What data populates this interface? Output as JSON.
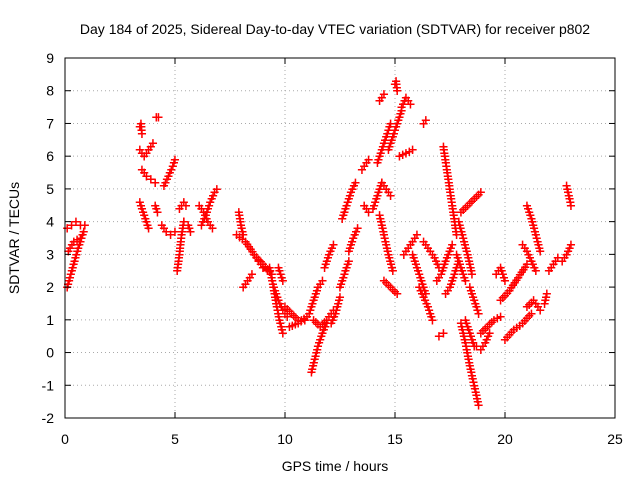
{
  "chart_data": {
    "type": "scatter",
    "title": "Day 184 of 2025, Sidereal Day-to-day VTEC variation (SDTVAR) for receiver p802",
    "xlabel": "GPS time / hours",
    "ylabel": "SDTVAR / TECUs",
    "xlim": [
      0,
      25
    ],
    "ylim": [
      -2,
      9
    ],
    "xticks": [
      0,
      5,
      10,
      15,
      20,
      25
    ],
    "yticks": [
      -2,
      -1,
      0,
      1,
      2,
      3,
      4,
      5,
      6,
      7,
      8,
      9
    ],
    "grid": true,
    "marker": "+",
    "color": "#ff0000",
    "segments": [
      {
        "x": [
          0.1,
          0.35,
          0.6,
          0.85
        ],
        "y": [
          2.0,
          2.6,
          3.2,
          3.7
        ]
      },
      {
        "x": [
          0.1,
          0.3,
          0.5,
          0.7,
          0.9
        ],
        "y": [
          3.8,
          3.9,
          4.0,
          3.9,
          3.9
        ]
      },
      {
        "x": [
          0.15,
          0.4,
          0.7
        ],
        "y": [
          3.1,
          3.4,
          3.5
        ]
      },
      {
        "x": [
          3.4,
          3.45,
          3.5
        ],
        "y": [
          6.9,
          7.0,
          6.7
        ]
      },
      {
        "x": [
          3.4,
          3.6,
          3.8,
          4.0
        ],
        "y": [
          6.2,
          6.0,
          6.2,
          6.4
        ]
      },
      {
        "x": [
          3.5,
          3.7,
          3.9,
          4.1
        ],
        "y": [
          5.6,
          5.4,
          5.3,
          5.2
        ]
      },
      {
        "x": [
          3.4,
          3.6,
          3.8
        ],
        "y": [
          4.6,
          4.2,
          3.8
        ]
      },
      {
        "x": [
          4.1,
          4.2
        ],
        "y": [
          4.5,
          4.3
        ]
      },
      {
        "x": [
          4.15,
          4.25
        ],
        "y": [
          7.2,
          7.2
        ]
      },
      {
        "x": [
          4.5,
          4.7,
          4.9,
          5.0
        ],
        "y": [
          5.1,
          5.4,
          5.7,
          5.9
        ]
      },
      {
        "x": [
          4.4,
          4.6,
          4.8,
          5.0
        ],
        "y": [
          3.9,
          3.7,
          3.6,
          3.7
        ]
      },
      {
        "x": [
          5.1,
          5.2,
          5.3,
          5.4
        ],
        "y": [
          2.5,
          3.0,
          3.6,
          4.0
        ]
      },
      {
        "x": [
          5.2,
          5.4,
          5.5
        ],
        "y": [
          4.4,
          4.6,
          4.5
        ]
      },
      {
        "x": [
          5.4,
          5.6,
          5.7
        ],
        "y": [
          4.0,
          3.9,
          3.7
        ]
      },
      {
        "x": [
          6.2,
          6.4,
          6.6,
          6.8,
          6.9
        ],
        "y": [
          3.9,
          4.2,
          4.6,
          4.9,
          5.0
        ]
      },
      {
        "x": [
          6.1,
          6.3,
          6.5,
          6.7
        ],
        "y": [
          4.5,
          4.3,
          4.0,
          3.8
        ]
      },
      {
        "x": [
          7.9,
          8.0,
          8.1
        ],
        "y": [
          4.3,
          3.9,
          3.6
        ]
      },
      {
        "x": [
          7.8,
          8.2,
          8.6,
          9.0,
          9.4
        ],
        "y": [
          3.6,
          3.4,
          3.0,
          2.7,
          2.4
        ]
      },
      {
        "x": [
          8.1,
          8.3,
          8.5
        ],
        "y": [
          2.0,
          2.2,
          2.4
        ]
      },
      {
        "x": [
          8.6,
          8.8,
          9.0,
          9.2
        ],
        "y": [
          3.0,
          2.8,
          2.6,
          2.5
        ]
      },
      {
        "x": [
          9.3,
          9.45,
          9.6,
          9.75,
          9.9
        ],
        "y": [
          2.6,
          2.1,
          1.5,
          1.0,
          0.6
        ]
      },
      {
        "x": [
          9.5,
          9.7,
          9.9,
          10.1
        ],
        "y": [
          2.0,
          1.6,
          1.3,
          1.1
        ]
      },
      {
        "x": [
          9.7,
          9.8,
          9.9
        ],
        "y": [
          2.6,
          2.4,
          2.2
        ]
      },
      {
        "x": [
          10.0,
          10.3,
          10.6,
          10.9
        ],
        "y": [
          1.4,
          1.2,
          1.0,
          1.0
        ]
      },
      {
        "x": [
          10.2,
          10.6,
          11.0
        ],
        "y": [
          0.8,
          0.9,
          1.1
        ]
      },
      {
        "x": [
          11.1,
          11.3,
          11.5,
          11.7
        ],
        "y": [
          1.2,
          1.6,
          2.0,
          2.2
        ]
      },
      {
        "x": [
          11.2,
          11.35,
          11.5,
          11.7,
          11.9
        ],
        "y": [
          -0.6,
          -0.2,
          0.2,
          0.6,
          0.9
        ]
      },
      {
        "x": [
          11.8,
          12.0,
          12.2
        ],
        "y": [
          2.6,
          3.0,
          3.3
        ]
      },
      {
        "x": [
          11.3,
          11.6,
          11.9,
          12.2
        ],
        "y": [
          1.0,
          0.8,
          1.0,
          1.3
        ]
      },
      {
        "x": [
          12.1,
          12.3,
          12.5
        ],
        "y": [
          0.9,
          1.2,
          1.7
        ]
      },
      {
        "x": [
          12.5,
          12.7,
          12.9
        ],
        "y": [
          2.0,
          2.4,
          2.8
        ]
      },
      {
        "x": [
          12.6,
          12.8,
          13.0,
          13.2
        ],
        "y": [
          4.1,
          4.5,
          4.9,
          5.2
        ]
      },
      {
        "x": [
          12.9,
          13.1,
          13.3
        ],
        "y": [
          3.1,
          3.5,
          3.8
        ]
      },
      {
        "x": [
          13.6,
          13.8
        ],
        "y": [
          4.5,
          4.3
        ]
      },
      {
        "x": [
          13.5,
          13.8
        ],
        "y": [
          5.6,
          5.9
        ]
      },
      {
        "x": [
          14.0,
          14.2,
          14.4
        ],
        "y": [
          4.4,
          4.8,
          5.2
        ]
      },
      {
        "x": [
          14.2,
          14.4,
          14.6,
          14.8
        ],
        "y": [
          5.8,
          6.2,
          6.6,
          7.0
        ]
      },
      {
        "x": [
          14.3,
          14.5,
          14.7,
          14.9
        ],
        "y": [
          4.2,
          3.6,
          3.0,
          2.5
        ]
      },
      {
        "x": [
          14.4,
          14.6,
          14.8
        ],
        "y": [
          5.2,
          5.0,
          4.8
        ]
      },
      {
        "x": [
          14.5,
          14.8,
          15.1
        ],
        "y": [
          2.2,
          2.0,
          1.8
        ]
      },
      {
        "x": [
          14.7,
          14.9,
          15.1,
          15.3
        ],
        "y": [
          6.2,
          6.6,
          7.0,
          7.4
        ]
      },
      {
        "x": [
          15.0,
          15.05,
          15.1
        ],
        "y": [
          8.2,
          8.3,
          8.0
        ]
      },
      {
        "x": [
          14.3,
          14.5
        ],
        "y": [
          7.7,
          7.9
        ]
      },
      {
        "x": [
          15.3,
          15.5,
          15.7
        ],
        "y": [
          7.5,
          7.8,
          7.6
        ]
      },
      {
        "x": [
          15.2,
          15.5,
          15.8
        ],
        "y": [
          6.0,
          6.1,
          6.2
        ]
      },
      {
        "x": [
          15.4,
          15.6,
          15.8,
          16.0
        ],
        "y": [
          3.0,
          3.2,
          3.4,
          3.6
        ]
      },
      {
        "x": [
          15.8,
          16.0,
          16.2,
          16.4
        ],
        "y": [
          3.0,
          2.6,
          2.2,
          1.8
        ]
      },
      {
        "x": [
          16.1,
          16.3,
          16.5,
          16.7
        ],
        "y": [
          2.0,
          1.7,
          1.4,
          1.0
        ]
      },
      {
        "x": [
          16.3,
          16.5,
          16.8,
          17.0
        ],
        "y": [
          3.4,
          3.2,
          2.9,
          2.6
        ]
      },
      {
        "x": [
          16.3,
          16.4
        ],
        "y": [
          7.0,
          7.1
        ]
      },
      {
        "x": [
          16.9,
          17.1,
          17.3,
          17.6
        ],
        "y": [
          2.2,
          2.4,
          2.8,
          3.3
        ]
      },
      {
        "x": [
          17.2,
          17.4,
          17.6,
          17.8
        ],
        "y": [
          6.3,
          5.4,
          4.5,
          3.6
        ]
      },
      {
        "x": [
          17.3,
          17.5,
          17.7,
          17.9
        ],
        "y": [
          1.8,
          2.0,
          2.4,
          2.8
        ]
      },
      {
        "x": [
          17.0,
          17.2
        ],
        "y": [
          0.5,
          0.6
        ]
      },
      {
        "x": [
          17.8,
          18.0,
          18.2
        ],
        "y": [
          3.0,
          2.6,
          2.2
        ]
      },
      {
        "x": [
          18.0,
          18.3,
          18.6,
          18.9
        ],
        "y": [
          4.3,
          4.5,
          4.7,
          4.9
        ]
      },
      {
        "x": [
          17.9,
          18.1,
          18.3,
          18.5
        ],
        "y": [
          4.0,
          3.5,
          3.0,
          2.4
        ]
      },
      {
        "x": [
          18.0,
          18.2,
          18.4,
          18.6,
          18.8
        ],
        "y": [
          0.9,
          0.3,
          -0.4,
          -1.0,
          -1.6
        ]
      },
      {
        "x": [
          18.2,
          18.4,
          18.6
        ],
        "y": [
          1.0,
          0.6,
          0.2
        ]
      },
      {
        "x": [
          18.4,
          18.6,
          18.8
        ],
        "y": [
          2.0,
          1.6,
          1.2
        ]
      },
      {
        "x": [
          18.7,
          18.9,
          19.1,
          19.3
        ],
        "y": [
          0.2,
          0.1,
          0.3,
          0.6
        ]
      },
      {
        "x": [
          18.9,
          19.2,
          19.5,
          19.8
        ],
        "y": [
          0.6,
          0.8,
          1.0,
          1.1
        ]
      },
      {
        "x": [
          19.6,
          19.8,
          20.0
        ],
        "y": [
          2.4,
          2.6,
          2.2
        ]
      },
      {
        "x": [
          19.8,
          20.2,
          20.6,
          21.0
        ],
        "y": [
          1.6,
          1.9,
          2.3,
          2.7
        ]
      },
      {
        "x": [
          20.0,
          20.4,
          20.8,
          21.2
        ],
        "y": [
          0.4,
          0.7,
          0.9,
          1.2
        ]
      },
      {
        "x": [
          20.8,
          21.0,
          21.2,
          21.4
        ],
        "y": [
          3.3,
          3.1,
          2.8,
          2.5
        ]
      },
      {
        "x": [
          21.0,
          21.2,
          21.4,
          21.6
        ],
        "y": [
          4.5,
          4.1,
          3.6,
          3.1
        ]
      },
      {
        "x": [
          21.0,
          21.3,
          21.6
        ],
        "y": [
          1.4,
          1.6,
          1.3
        ]
      },
      {
        "x": [
          21.8,
          21.9
        ],
        "y": [
          1.5,
          1.8
        ]
      },
      {
        "x": [
          22.0,
          22.2,
          22.4
        ],
        "y": [
          2.5,
          2.7,
          2.9
        ]
      },
      {
        "x": [
          22.6,
          22.8,
          23.0
        ],
        "y": [
          2.8,
          3.0,
          3.3
        ]
      },
      {
        "x": [
          22.8,
          22.9,
          23.0
        ],
        "y": [
          5.1,
          4.8,
          4.5
        ]
      }
    ]
  }
}
